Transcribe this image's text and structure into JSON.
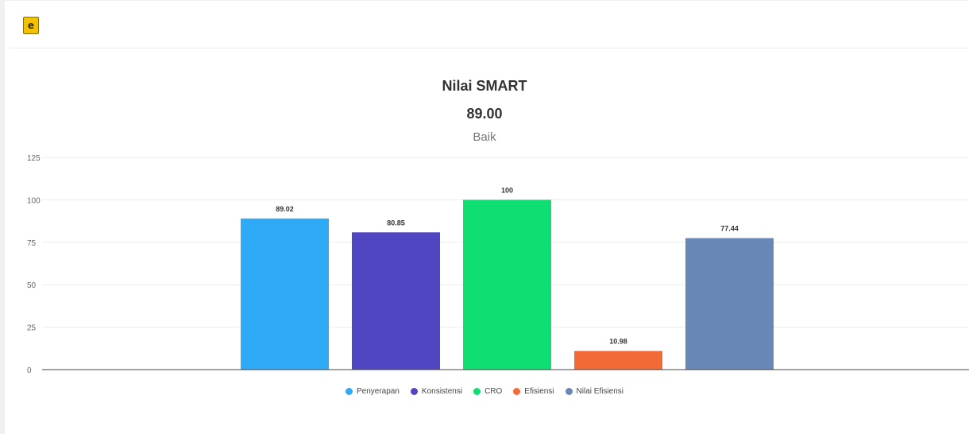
{
  "header": {
    "brand_icon_glyph": "e"
  },
  "chart_data": {
    "type": "bar",
    "title": "Nilai SMART",
    "value_text": "89.00",
    "subtitle": "Baik",
    "categories": [
      "Penyerapan",
      "Konsistensi",
      "CRO",
      "Efisiensi",
      "Nilai Efisiensi"
    ],
    "values": [
      89.02,
      80.85,
      100,
      10.98,
      77.44
    ],
    "value_labels": [
      "89.02",
      "80.85",
      "100",
      "10.98",
      "77.44"
    ],
    "colors": [
      "#2eaaf7",
      "#5046c2",
      "#0fde72",
      "#f26a35",
      "#6987b6"
    ],
    "ylim": [
      0,
      125
    ],
    "yticks": [
      0,
      25,
      50,
      75,
      100,
      125
    ],
    "grid": true,
    "legend_position": "bottom-center"
  }
}
